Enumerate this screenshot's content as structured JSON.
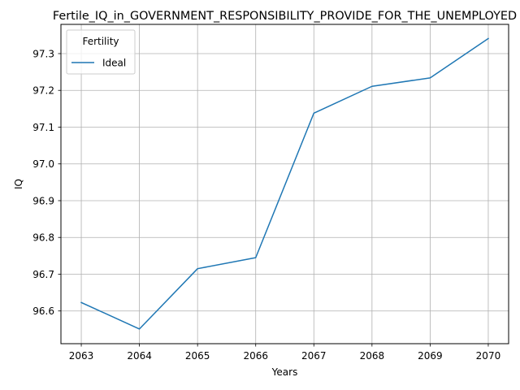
{
  "chart_data": {
    "type": "line",
    "title": "Fertile_IQ_in_GOVERNMENT_RESPONSIBILITY_PROVIDE_FOR_THE_UNEMPLOYED",
    "xlabel": "Years",
    "ylabel": "IQ",
    "x": [
      2063,
      2064,
      2065,
      2066,
      2067,
      2068,
      2069,
      2070
    ],
    "xlim": [
      2062.65,
      2070.35
    ],
    "ylim": [
      96.511,
      97.3795
    ],
    "xticks": [
      "2063",
      "2064",
      "2065",
      "2066",
      "2067",
      "2068",
      "2069",
      "2070"
    ],
    "yticks": [
      "96.6",
      "96.7",
      "96.8",
      "96.9",
      "97.0",
      "97.1",
      "97.2",
      "97.3"
    ],
    "grid": true,
    "legend": {
      "title": "Fertility",
      "placement": "upper-left"
    },
    "series": [
      {
        "name": "Ideal",
        "color": "#1f77b4",
        "values": [
          96.623,
          96.551,
          96.715,
          96.745,
          97.138,
          97.211,
          97.234,
          97.341
        ]
      }
    ]
  }
}
